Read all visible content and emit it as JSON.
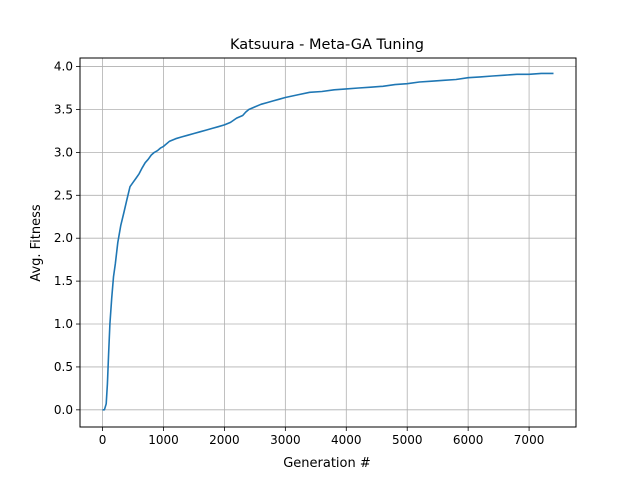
{
  "chart_data": {
    "type": "line",
    "title": "Katsuura - Meta-GA Tuning",
    "xlabel": "Generation #",
    "ylabel": "Avg. Fitness",
    "xlim": [
      -370,
      7770
    ],
    "ylim": [
      -0.2,
      4.1
    ],
    "xticks": [
      0,
      1000,
      2000,
      3000,
      4000,
      5000,
      6000,
      7000
    ],
    "xtick_labels": [
      "0",
      "1000",
      "2000",
      "3000",
      "4000",
      "5000",
      "6000",
      "7000"
    ],
    "yticks": [
      0.0,
      0.5,
      1.0,
      1.5,
      2.0,
      2.5,
      3.0,
      3.5,
      4.0
    ],
    "ytick_labels": [
      "0.0",
      "0.5",
      "1.0",
      "1.5",
      "2.0",
      "2.5",
      "3.0",
      "3.5",
      "4.0"
    ],
    "grid": true,
    "line_color": "#1f77b4",
    "series": [
      {
        "x": [
          0,
          30,
          60,
          80,
          100,
          120,
          150,
          180,
          210,
          250,
          300,
          350,
          400,
          450,
          500,
          550,
          600,
          650,
          700,
          750,
          800,
          850,
          900,
          950,
          1000,
          1100,
          1200,
          1300,
          1400,
          1500,
          1600,
          1700,
          1800,
          1900,
          2000,
          2100,
          2200,
          2300,
          2350,
          2400,
          2500,
          2600,
          2700,
          2800,
          2900,
          3000,
          3200,
          3400,
          3600,
          3800,
          4000,
          4200,
          4400,
          4600,
          4800,
          5000,
          5200,
          5400,
          5600,
          5800,
          6000,
          6200,
          6400,
          6600,
          6800,
          7000,
          7200,
          7400
        ],
        "y": [
          0.0,
          0.0,
          0.07,
          0.3,
          0.65,
          1.0,
          1.3,
          1.55,
          1.7,
          1.95,
          2.15,
          2.3,
          2.45,
          2.6,
          2.65,
          2.7,
          2.75,
          2.82,
          2.88,
          2.92,
          2.97,
          3.0,
          3.02,
          3.05,
          3.07,
          3.13,
          3.16,
          3.18,
          3.2,
          3.22,
          3.24,
          3.26,
          3.28,
          3.3,
          3.32,
          3.35,
          3.4,
          3.43,
          3.47,
          3.5,
          3.53,
          3.56,
          3.58,
          3.6,
          3.62,
          3.64,
          3.67,
          3.7,
          3.71,
          3.73,
          3.74,
          3.75,
          3.76,
          3.77,
          3.79,
          3.8,
          3.82,
          3.83,
          3.84,
          3.85,
          3.87,
          3.88,
          3.89,
          3.9,
          3.91,
          3.91,
          3.92,
          3.92
        ]
      }
    ]
  }
}
